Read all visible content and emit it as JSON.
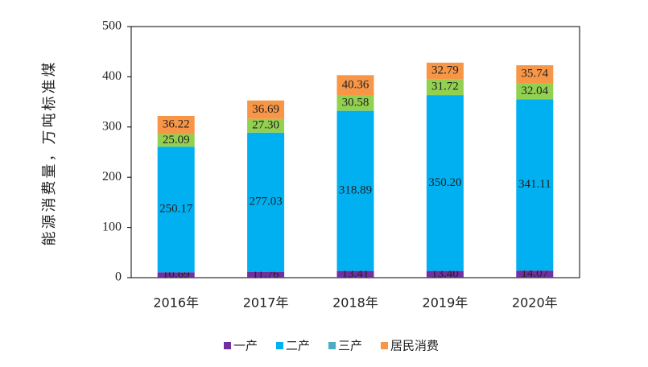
{
  "chart_data": {
    "type": "stacked_bar",
    "y_label": "能源消费量，万吨标准煤",
    "categories": [
      "2016年",
      "2017年",
      "2018年",
      "2019年",
      "2020年"
    ],
    "series": [
      {
        "name": "一产",
        "color": "#7030a0",
        "legend_color": "#7030a0",
        "values": [
          10.69,
          11.76,
          13.41,
          13.4,
          14.07
        ],
        "value_labels": [
          "10.69",
          "11.76",
          "13.41",
          "13.40",
          "14.07"
        ]
      },
      {
        "name": "二产",
        "color": "#00b0f0",
        "legend_color": "#00b0f0",
        "values": [
          250.17,
          277.03,
          318.89,
          350.2,
          341.11
        ],
        "value_labels": [
          "250.17",
          "277.03",
          "318.89",
          "350.20",
          "341.11"
        ]
      },
      {
        "name": "三产",
        "color": "#92d050",
        "legend_color": "#4bacc6",
        "values": [
          25.09,
          27.3,
          30.58,
          31.72,
          32.04
        ],
        "value_labels": [
          "25.09",
          "27.30",
          "30.58",
          "31.72",
          "32.04"
        ]
      },
      {
        "name": "居民消费",
        "color": "#f79646",
        "legend_color": "#f79646",
        "values": [
          36.22,
          36.69,
          40.36,
          32.79,
          35.74
        ],
        "value_labels": [
          "36.22",
          "36.69",
          "40.36",
          "32.79",
          "35.74"
        ]
      }
    ],
    "ylim": [
      0,
      500
    ],
    "yticks": [
      0,
      100,
      200,
      300,
      400,
      500
    ],
    "grid": false,
    "legend": "bottom"
  }
}
